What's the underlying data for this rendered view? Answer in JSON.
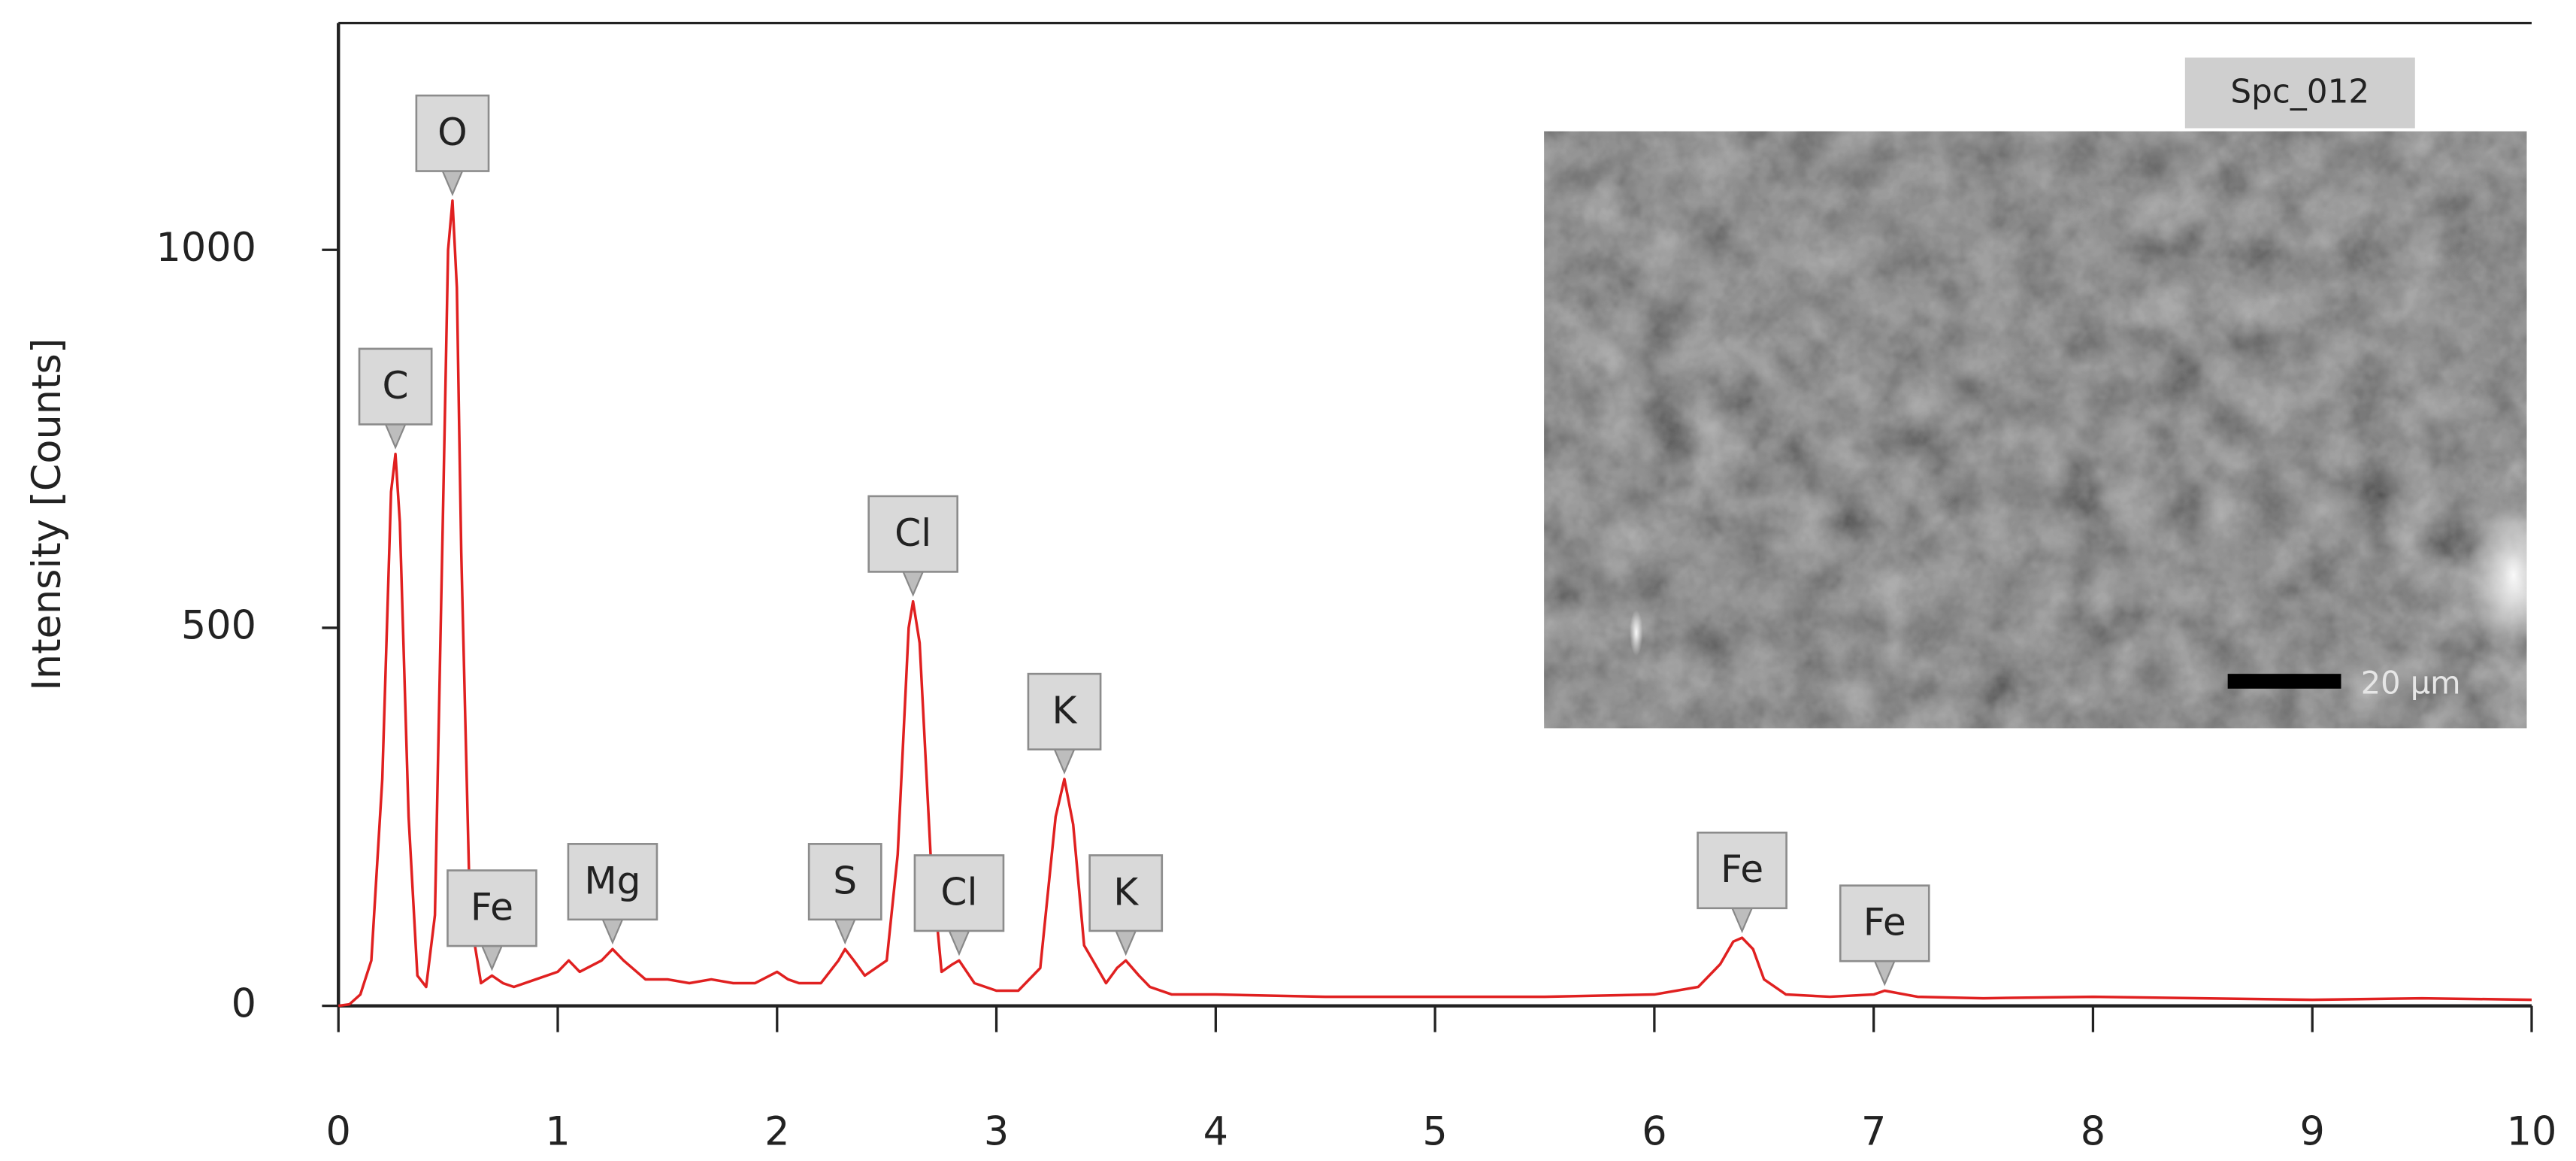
{
  "chart_data": {
    "type": "line",
    "y_label": "Intensity [Counts]",
    "x": [
      0,
      0.05,
      0.1,
      0.15,
      0.2,
      0.24,
      0.26,
      0.28,
      0.32,
      0.36,
      0.4,
      0.44,
      0.48,
      0.5,
      0.52,
      0.54,
      0.56,
      0.6,
      0.65,
      0.7,
      0.75,
      0.8,
      0.9,
      1.0,
      1.05,
      1.1,
      1.2,
      1.25,
      1.3,
      1.4,
      1.5,
      1.6,
      1.7,
      1.8,
      1.9,
      2.0,
      2.05,
      2.1,
      2.2,
      2.28,
      2.31,
      2.35,
      2.4,
      2.5,
      2.55,
      2.6,
      2.62,
      2.65,
      2.7,
      2.75,
      2.8,
      2.83,
      2.9,
      3.0,
      3.1,
      3.2,
      3.27,
      3.31,
      3.35,
      3.4,
      3.5,
      3.55,
      3.59,
      3.65,
      3.7,
      3.8,
      4.0,
      4.5,
      5.0,
      5.5,
      6.0,
      6.2,
      6.3,
      6.36,
      6.4,
      6.45,
      6.5,
      6.6,
      6.8,
      7.0,
      7.05,
      7.2,
      7.5,
      8.0,
      8.5,
      9.0,
      9.5,
      10
    ],
    "values": [
      0,
      2,
      15,
      60,
      300,
      680,
      730,
      640,
      250,
      40,
      25,
      120,
      700,
      1000,
      1065,
      950,
      600,
      120,
      30,
      40,
      30,
      25,
      35,
      45,
      60,
      45,
      60,
      75,
      60,
      35,
      35,
      30,
      35,
      30,
      30,
      45,
      35,
      30,
      30,
      60,
      75,
      60,
      40,
      60,
      200,
      500,
      535,
      480,
      200,
      45,
      55,
      60,
      30,
      20,
      20,
      50,
      250,
      300,
      240,
      80,
      30,
      50,
      60,
      40,
      25,
      15,
      15,
      12,
      12,
      12,
      15,
      25,
      55,
      85,
      90,
      75,
      35,
      15,
      12,
      15,
      20,
      12,
      10,
      12,
      10,
      8,
      10,
      8
    ],
    "color": "#e02020",
    "xlim": [
      0,
      10
    ],
    "xticks": [
      0,
      1,
      2,
      3,
      4,
      5,
      6,
      7,
      8,
      9,
      10
    ],
    "ylim": [
      0,
      1300
    ],
    "yticks": [
      0,
      500,
      1000
    ],
    "annotations": [
      {
        "text": "C",
        "x": 0.26,
        "y": 730
      },
      {
        "text": "O",
        "x": 0.52,
        "y": 1065
      },
      {
        "text": "Fe",
        "x": 0.7,
        "y": 40
      },
      {
        "text": "Mg",
        "x": 1.25,
        "y": 75
      },
      {
        "text": "S",
        "x": 2.31,
        "y": 75
      },
      {
        "text": "Cl",
        "x": 2.62,
        "y": 535
      },
      {
        "text": "Cl",
        "x": 2.83,
        "y": 60
      },
      {
        "text": "K",
        "x": 3.31,
        "y": 300
      },
      {
        "text": "K",
        "x": 3.59,
        "y": 60
      },
      {
        "text": "Fe",
        "x": 6.4,
        "y": 90
      },
      {
        "text": "Fe",
        "x": 7.05,
        "y": 20
      }
    ],
    "inset_label": "Spc_012",
    "scale_bar": "20 µm"
  }
}
